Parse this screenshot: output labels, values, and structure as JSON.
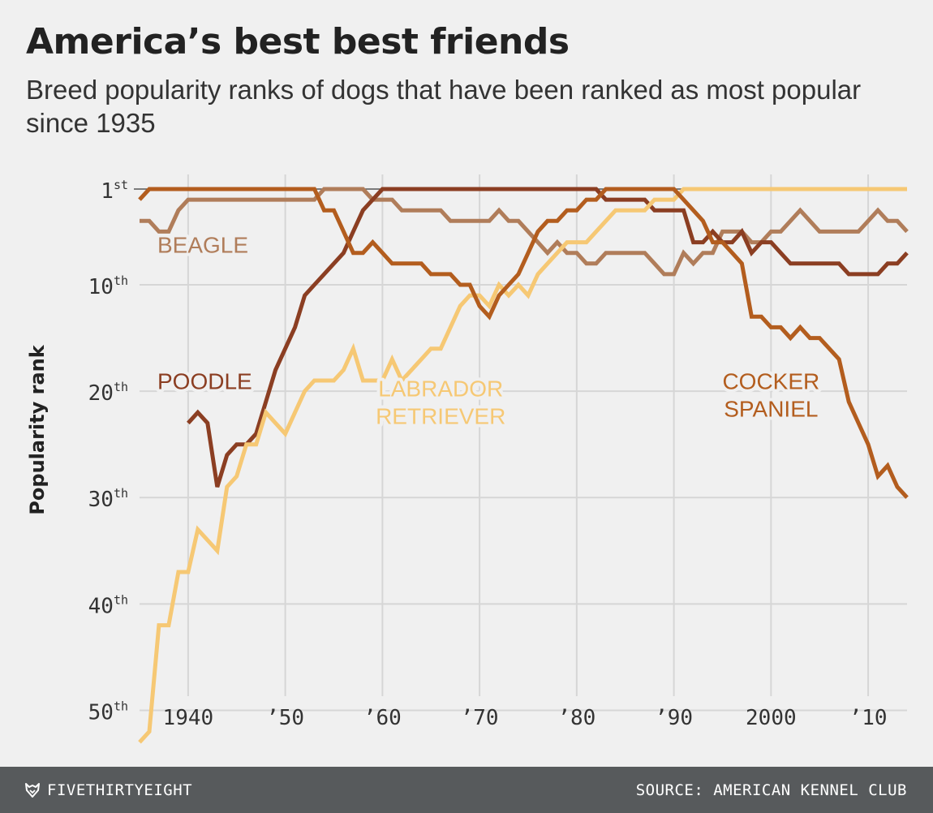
{
  "header": {
    "title": "America’s best best friends",
    "subtitle": "Breed popularity ranks of dogs that have been ranked as most popular since 1935"
  },
  "footer": {
    "brand": "FIVETHIRTYEIGHT",
    "brand_icon": "fox-logo-icon",
    "source": "SOURCE: AMERICAN KENNEL CLUB"
  },
  "chart_data": {
    "type": "line",
    "ylabel": "Popularity rank",
    "xlim": [
      1935,
      2014
    ],
    "ylim": [
      1,
      52
    ],
    "y_inverted": true,
    "grid": true,
    "x_ticks": [
      {
        "value": 1940,
        "label": "1940"
      },
      {
        "value": 1950,
        "label": "’50"
      },
      {
        "value": 1960,
        "label": "’60"
      },
      {
        "value": 1970,
        "label": "’70"
      },
      {
        "value": 1980,
        "label": "’80"
      },
      {
        "value": 1990,
        "label": "’90"
      },
      {
        "value": 2000,
        "label": "2000"
      },
      {
        "value": 2010,
        "label": "’10"
      }
    ],
    "y_ticks": [
      {
        "value": 1,
        "num": "1",
        "suffix": "st"
      },
      {
        "value": 10,
        "num": "10",
        "suffix": "th"
      },
      {
        "value": 20,
        "num": "20",
        "suffix": "th"
      },
      {
        "value": 30,
        "num": "30",
        "suffix": "th"
      },
      {
        "value": 40,
        "num": "40",
        "suffix": "th"
      },
      {
        "value": 50,
        "num": "50",
        "suffix": "th"
      }
    ],
    "series": [
      {
        "name": "BEAGLE",
        "label_lines": [
          "BEAGLE"
        ],
        "label_pos": {
          "x": 1935.5,
          "y": 7
        },
        "label_align": "start",
        "color": "#b07d5a",
        "points": [
          [
            1935,
            4
          ],
          [
            1936,
            4
          ],
          [
            1937,
            5
          ],
          [
            1938,
            5
          ],
          [
            1939,
            3
          ],
          [
            1940,
            2
          ],
          [
            1953,
            2
          ],
          [
            1954,
            1
          ],
          [
            1958,
            1
          ],
          [
            1959,
            2
          ],
          [
            1960,
            2
          ],
          [
            1961,
            2
          ],
          [
            1962,
            3
          ],
          [
            1963,
            3
          ],
          [
            1964,
            3
          ],
          [
            1965,
            3
          ],
          [
            1966,
            3
          ],
          [
            1967,
            4
          ],
          [
            1968,
            4
          ],
          [
            1969,
            4
          ],
          [
            1970,
            4
          ],
          [
            1971,
            4
          ],
          [
            1972,
            3
          ],
          [
            1973,
            4
          ],
          [
            1974,
            4
          ],
          [
            1975,
            5
          ],
          [
            1976,
            6
          ],
          [
            1977,
            7
          ],
          [
            1978,
            6
          ],
          [
            1979,
            7
          ],
          [
            1980,
            7
          ],
          [
            1981,
            8
          ],
          [
            1982,
            8
          ],
          [
            1983,
            7
          ],
          [
            1984,
            7
          ],
          [
            1985,
            7
          ],
          [
            1986,
            7
          ],
          [
            1987,
            7
          ],
          [
            1988,
            8
          ],
          [
            1989,
            9
          ],
          [
            1990,
            9
          ],
          [
            1991,
            7
          ],
          [
            1992,
            8
          ],
          [
            1993,
            7
          ],
          [
            1994,
            7
          ],
          [
            1995,
            5
          ],
          [
            1996,
            5
          ],
          [
            1997,
            5
          ],
          [
            1998,
            6
          ],
          [
            1999,
            6
          ],
          [
            2000,
            5
          ],
          [
            2001,
            5
          ],
          [
            2002,
            4
          ],
          [
            2003,
            3
          ],
          [
            2004,
            4
          ],
          [
            2005,
            5
          ],
          [
            2006,
            5
          ],
          [
            2007,
            5
          ],
          [
            2008,
            5
          ],
          [
            2009,
            5
          ],
          [
            2010,
            4
          ],
          [
            2011,
            3
          ],
          [
            2012,
            4
          ],
          [
            2013,
            4
          ],
          [
            2014,
            5
          ]
        ]
      },
      {
        "name": "POODLE",
        "label_lines": [
          "POODLE"
        ],
        "label_pos": {
          "x": 1935.5,
          "y": 19.8
        },
        "label_align": "start",
        "color": "#8b3e22",
        "points": [
          [
            1940,
            23
          ],
          [
            1941,
            22
          ],
          [
            1942,
            23
          ],
          [
            1943,
            29
          ],
          [
            1944,
            26
          ],
          [
            1945,
            25
          ],
          [
            1946,
            25
          ],
          [
            1947,
            24
          ],
          [
            1948,
            21
          ],
          [
            1949,
            18
          ],
          [
            1950,
            16
          ],
          [
            1951,
            14
          ],
          [
            1952,
            11
          ],
          [
            1953,
            10
          ],
          [
            1954,
            9
          ],
          [
            1955,
            8
          ],
          [
            1956,
            7
          ],
          [
            1957,
            5
          ],
          [
            1958,
            3
          ],
          [
            1959,
            2
          ],
          [
            1960,
            1
          ],
          [
            1982,
            1
          ],
          [
            1983,
            2
          ],
          [
            1984,
            2
          ],
          [
            1987,
            2
          ],
          [
            1988,
            3
          ],
          [
            1991,
            3
          ],
          [
            1992,
            6
          ],
          [
            1993,
            6
          ],
          [
            1994,
            5
          ],
          [
            1995,
            6
          ],
          [
            1996,
            6
          ],
          [
            1997,
            5
          ],
          [
            1998,
            7
          ],
          [
            1999,
            6
          ],
          [
            2000,
            6
          ],
          [
            2001,
            7
          ],
          [
            2002,
            8
          ],
          [
            2007,
            8
          ],
          [
            2008,
            9
          ],
          [
            2011,
            9
          ],
          [
            2012,
            8
          ],
          [
            2013,
            8
          ],
          [
            2014,
            7
          ]
        ]
      },
      {
        "name": "LABRADOR RETRIEVER",
        "label_lines": [
          "LABRADOR",
          "RETRIEVER"
        ],
        "label_pos": {
          "x": 1966,
          "y": 20.5
        },
        "label_align": "middle",
        "color": "#f6c874",
        "points": [
          [
            1935,
            53
          ],
          [
            1936,
            52
          ],
          [
            1937,
            42
          ],
          [
            1938,
            42
          ],
          [
            1939,
            37
          ],
          [
            1940,
            37
          ],
          [
            1941,
            33
          ],
          [
            1942,
            34
          ],
          [
            1943,
            35
          ],
          [
            1944,
            29
          ],
          [
            1945,
            28
          ],
          [
            1946,
            25
          ],
          [
            1947,
            25
          ],
          [
            1948,
            22
          ],
          [
            1949,
            23
          ],
          [
            1950,
            24
          ],
          [
            1951,
            22
          ],
          [
            1952,
            20
          ],
          [
            1953,
            19
          ],
          [
            1954,
            19
          ],
          [
            1955,
            19
          ],
          [
            1956,
            18
          ],
          [
            1957,
            16
          ],
          [
            1958,
            19
          ],
          [
            1959,
            19
          ],
          [
            1960,
            19
          ],
          [
            1961,
            17
          ],
          [
            1962,
            19
          ],
          [
            1963,
            18
          ],
          [
            1964,
            17
          ],
          [
            1965,
            16
          ],
          [
            1966,
            16
          ],
          [
            1967,
            14
          ],
          [
            1968,
            12
          ],
          [
            1969,
            11
          ],
          [
            1970,
            11
          ],
          [
            1971,
            12
          ],
          [
            1972,
            10
          ],
          [
            1973,
            11
          ],
          [
            1974,
            10
          ],
          [
            1975,
            11
          ],
          [
            1976,
            9
          ],
          [
            1977,
            8
          ],
          [
            1978,
            7
          ],
          [
            1979,
            6
          ],
          [
            1980,
            6
          ],
          [
            1981,
            6
          ],
          [
            1982,
            5
          ],
          [
            1983,
            4
          ],
          [
            1984,
            3
          ],
          [
            1985,
            3
          ],
          [
            1986,
            3
          ],
          [
            1987,
            3
          ],
          [
            1988,
            2
          ],
          [
            1989,
            2
          ],
          [
            1990,
            2
          ],
          [
            1991,
            1
          ],
          [
            2014,
            1
          ]
        ]
      },
      {
        "name": "COCKER SPANIEL",
        "label_lines": [
          "COCKER",
          "SPANIEL"
        ],
        "label_pos": {
          "x": 2000,
          "y": 19.8
        },
        "label_align": "middle",
        "color": "#b35d1e",
        "points": [
          [
            1935,
            2
          ],
          [
            1936,
            1
          ],
          [
            1953,
            1
          ],
          [
            1954,
            3
          ],
          [
            1955,
            3
          ],
          [
            1956,
            5
          ],
          [
            1957,
            7
          ],
          [
            1958,
            7
          ],
          [
            1959,
            6
          ],
          [
            1960,
            7
          ],
          [
            1961,
            8
          ],
          [
            1962,
            8
          ],
          [
            1963,
            8
          ],
          [
            1964,
            8
          ],
          [
            1965,
            9
          ],
          [
            1966,
            9
          ],
          [
            1967,
            9
          ],
          [
            1968,
            10
          ],
          [
            1969,
            10
          ],
          [
            1970,
            12
          ],
          [
            1971,
            13
          ],
          [
            1972,
            11
          ],
          [
            1973,
            10
          ],
          [
            1974,
            9
          ],
          [
            1975,
            7
          ],
          [
            1976,
            5
          ],
          [
            1977,
            4
          ],
          [
            1978,
            4
          ],
          [
            1979,
            3
          ],
          [
            1980,
            3
          ],
          [
            1981,
            2
          ],
          [
            1982,
            2
          ],
          [
            1983,
            1
          ],
          [
            1990,
            1
          ],
          [
            1991,
            2
          ],
          [
            1992,
            3
          ],
          [
            1993,
            4
          ],
          [
            1994,
            6
          ],
          [
            1995,
            6
          ],
          [
            1996,
            7
          ],
          [
            1997,
            8
          ],
          [
            1998,
            13
          ],
          [
            1999,
            13
          ],
          [
            2000,
            14
          ],
          [
            2001,
            14
          ],
          [
            2002,
            15
          ],
          [
            2003,
            14
          ],
          [
            2004,
            15
          ],
          [
            2005,
            15
          ],
          [
            2006,
            16
          ],
          [
            2007,
            17
          ],
          [
            2008,
            21
          ],
          [
            2009,
            23
          ],
          [
            2010,
            25
          ],
          [
            2011,
            28
          ],
          [
            2012,
            27
          ],
          [
            2013,
            29
          ],
          [
            2014,
            30
          ]
        ]
      }
    ]
  }
}
